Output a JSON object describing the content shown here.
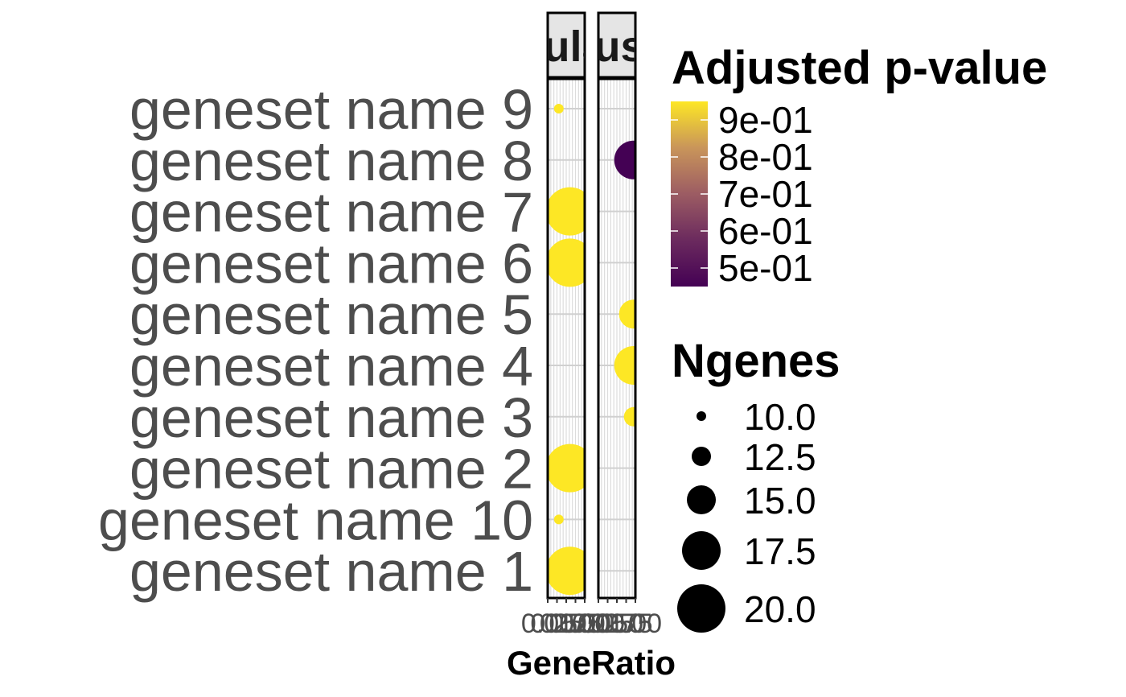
{
  "chart_data": {
    "type": "scatter",
    "xlabel": "GeneRatio",
    "panels": [
      {
        "strip_label": "Regulated",
        "x_ticks": [
          "0.00",
          "0.25",
          "0.50",
          "0.75",
          "1.00"
        ],
        "points": [
          {
            "y": "geneset name 9",
            "x": 0.3,
            "ngenes": 10.0,
            "padj": 0.95
          },
          {
            "y": "geneset name 7",
            "x": 0.6,
            "ngenes": 20.0,
            "padj": 0.95
          },
          {
            "y": "geneset name 6",
            "x": 0.6,
            "ngenes": 20.0,
            "padj": 0.95
          },
          {
            "y": "geneset name 2",
            "x": 0.6,
            "ngenes": 20.0,
            "padj": 0.95
          },
          {
            "y": "geneset name 10",
            "x": 0.3,
            "ngenes": 10.0,
            "padj": 0.95
          },
          {
            "y": "geneset name 1",
            "x": 0.6,
            "ngenes": 20.0,
            "padj": 0.95
          }
        ]
      },
      {
        "strip_label": "Adjusted",
        "x_ticks": [
          "0.00",
          "0.25",
          "0.50",
          "0.75",
          "1.00"
        ],
        "points": [
          {
            "y": "geneset name 8",
            "x": 0.95,
            "ngenes": 17.5,
            "padj": 0.45
          },
          {
            "y": "geneset name 5",
            "x": 0.95,
            "ngenes": 15.0,
            "padj": 0.95
          },
          {
            "y": "geneset name 4",
            "x": 0.95,
            "ngenes": 17.5,
            "padj": 0.95
          },
          {
            "y": "geneset name 3",
            "x": 0.95,
            "ngenes": 12.5,
            "padj": 0.95
          }
        ]
      }
    ],
    "categories": [
      "geneset name 9",
      "geneset name 8",
      "geneset name 7",
      "geneset name 6",
      "geneset name 5",
      "geneset name 4",
      "geneset name 3",
      "geneset name 2",
      "geneset name 10",
      "geneset name 1"
    ],
    "color_legend": {
      "title": "Adjusted p-value",
      "labels": [
        "9e-01",
        "8e-01",
        "7e-01",
        "6e-01",
        "5e-01"
      ],
      "values": [
        0.9,
        0.8,
        0.7,
        0.6,
        0.5
      ],
      "range": [
        0.45,
        0.95
      ],
      "low_color": "#440154",
      "high_color": "#fde725"
    },
    "size_legend": {
      "title": "Ngenes",
      "labels": [
        "10.0",
        "12.5",
        "15.0",
        "17.5",
        "20.0"
      ],
      "values": [
        10.0,
        12.5,
        15.0,
        17.5,
        20.0
      ]
    }
  }
}
